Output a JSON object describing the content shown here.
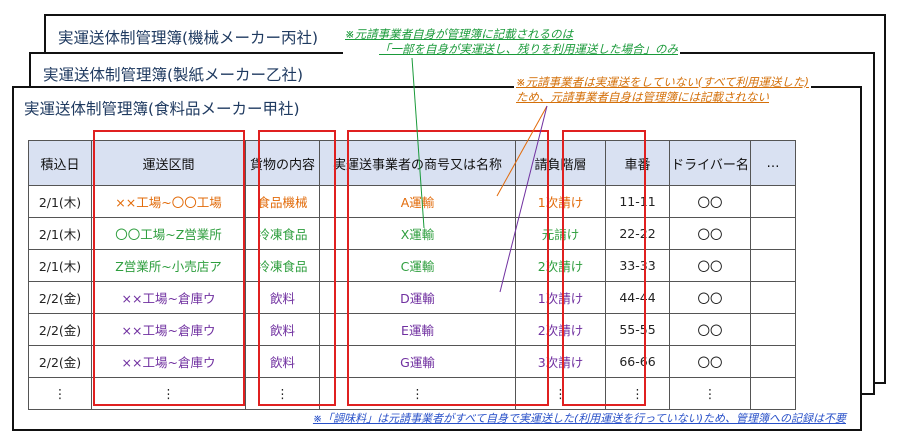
{
  "sheets": [
    {
      "title": "実運送体制管理簿(機械メーカー丙社)"
    },
    {
      "title": "実運送体制管理簿(製紙メーカー乙社)"
    },
    {
      "title": "実運送体制管理簿(食料品メーカー甲社)"
    }
  ],
  "notes": {
    "green": [
      "※元請事業者自身が管理簿に記載されるのは",
      "「一部を自身が実運送し、残りを利用運送した場合」のみ"
    ],
    "orange": [
      "※元請事業者は実運送をしていない(すべて利用運送した)",
      "ため、元請事業者自身は管理簿には記載されない"
    ],
    "blue": "※「調味料」は元請事業者がすべて自身で実運送した(利用運送を行っていない)ため、管理簿への記録は不要"
  },
  "colors": {
    "orange": "#e26b0a",
    "green": "#2e9e3e",
    "purple": "#7030a0",
    "highlight": "#e02020",
    "header_bg": "#d9e1f2"
  },
  "table": {
    "headers": [
      "積込日",
      "運送区間",
      "貨物の内容",
      "実運送事業者の商号又は名称",
      "請負階層",
      "車番",
      "ドライバー名",
      "…"
    ],
    "rows": [
      {
        "color": "orange",
        "cells": [
          "2/1(木)",
          "××工場~〇〇工場",
          "食品機械",
          "A運輸",
          "1次請け",
          "11-11",
          "〇〇",
          ""
        ]
      },
      {
        "color": "green",
        "cells": [
          "2/1(木)",
          "〇〇工場~Z営業所",
          "冷凍食品",
          "X運輸",
          "元請け",
          "22-22",
          "〇〇",
          ""
        ]
      },
      {
        "color": "green",
        "cells": [
          "2/1(木)",
          "Z営業所~小売店ア",
          "冷凍食品",
          "C運輸",
          "2次請け",
          "33-33",
          "〇〇",
          ""
        ]
      },
      {
        "color": "purple",
        "cells": [
          "2/2(金)",
          "××工場~倉庫ウ",
          "飲料",
          "D運輸",
          "1次請け",
          "44-44",
          "〇〇",
          ""
        ]
      },
      {
        "color": "purple",
        "cells": [
          "2/2(金)",
          "××工場~倉庫ウ",
          "飲料",
          "E運輸",
          "2次請け",
          "55-55",
          "〇〇",
          ""
        ]
      },
      {
        "color": "purple",
        "cells": [
          "2/2(金)",
          "××工場~倉庫ウ",
          "飲料",
          "G運輸",
          "3次請け",
          "66-66",
          "〇〇",
          ""
        ]
      },
      {
        "color": "black",
        "cells": [
          "⋮",
          "⋮",
          "⋮",
          "⋮",
          "⋮",
          "⋮",
          "⋮",
          ""
        ]
      }
    ]
  }
}
